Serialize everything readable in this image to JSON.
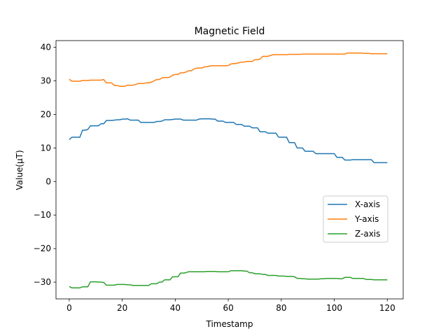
{
  "chart_data": {
    "type": "line",
    "title": "Magnetic Field",
    "xlabel": "Timestamp",
    "ylabel": "Value(μT)",
    "xlim": [
      -5,
      126
    ],
    "ylim": [
      -35,
      42
    ],
    "xticks": [
      0,
      20,
      40,
      60,
      80,
      100,
      120
    ],
    "yticks": [
      -30,
      -20,
      -10,
      0,
      10,
      20,
      30,
      40
    ],
    "legend": "center-right",
    "grid": false,
    "series": [
      {
        "name": "X-axis",
        "color": "#1f77b4",
        "x": [
          0,
          1,
          2,
          3,
          4,
          5,
          6,
          7,
          8,
          9,
          10,
          11,
          12,
          13,
          14,
          15,
          16,
          17,
          18,
          19,
          20,
          21,
          22,
          23,
          24,
          25,
          26,
          27,
          28,
          29,
          30,
          31,
          32,
          33,
          34,
          35,
          36,
          37,
          38,
          39,
          40,
          41,
          42,
          43,
          44,
          45,
          46,
          47,
          48,
          49,
          50,
          51,
          52,
          53,
          54,
          55,
          56,
          57,
          58,
          59,
          60,
          61,
          62,
          63,
          64,
          65,
          66,
          67,
          68,
          69,
          70,
          71,
          72,
          73,
          74,
          75,
          76,
          77,
          78,
          79,
          80,
          81,
          82,
          83,
          84,
          85,
          86,
          87,
          88,
          89,
          90,
          91,
          92,
          93,
          94,
          95,
          96,
          97,
          98,
          99,
          100,
          101,
          102,
          103,
          104,
          105,
          106,
          107,
          108,
          109,
          110,
          111,
          112,
          113,
          114,
          115,
          116,
          117,
          118,
          119,
          120
        ],
        "y": [
          12.5,
          13.2,
          13.2,
          13.2,
          13.2,
          15.3,
          15.3,
          15.5,
          16.6,
          16.6,
          16.6,
          16.6,
          17.2,
          17.2,
          18.2,
          18.2,
          18.2,
          18.3,
          18.4,
          18.4,
          18.6,
          18.6,
          18.7,
          18.3,
          18.3,
          18.3,
          18.3,
          17.6,
          17.6,
          17.6,
          17.6,
          17.6,
          17.6,
          17.9,
          17.9,
          18.0,
          18.4,
          18.4,
          18.4,
          18.5,
          18.6,
          18.6,
          18.6,
          18.3,
          18.3,
          18.3,
          18.3,
          18.3,
          18.3,
          18.6,
          18.7,
          18.7,
          18.7,
          18.7,
          18.6,
          18.6,
          18.0,
          18.0,
          18.0,
          17.6,
          17.6,
          17.6,
          17.6,
          17.0,
          17.0,
          17.0,
          16.5,
          16.5,
          16.5,
          16.0,
          16.0,
          16.0,
          14.8,
          14.8,
          14.8,
          14.4,
          14.4,
          14.4,
          14.4,
          13.2,
          13.2,
          13.2,
          13.2,
          11.6,
          11.6,
          11.6,
          10.0,
          10.0,
          10.0,
          9.0,
          9.0,
          9.0,
          9.0,
          8.3,
          8.3,
          8.3,
          8.3,
          8.3,
          8.3,
          8.3,
          8.3,
          7.2,
          7.2,
          7.2,
          6.4,
          6.4,
          6.4,
          6.5,
          6.5,
          6.5,
          6.5,
          6.5,
          6.5,
          6.5,
          6.5,
          5.6,
          5.6,
          5.6,
          5.6,
          5.6,
          5.6
        ],
        "series_break": true
      },
      {
        "name": "Y-axis",
        "color": "#ff7f0e",
        "x": [
          0,
          1,
          2,
          3,
          4,
          5,
          6,
          7,
          8,
          9,
          10,
          11,
          12,
          13,
          14,
          15,
          16,
          17,
          18,
          19,
          20,
          21,
          22,
          23,
          24,
          25,
          26,
          27,
          28,
          29,
          30,
          31,
          32,
          33,
          34,
          35,
          36,
          37,
          38,
          39,
          40,
          41,
          42,
          43,
          44,
          45,
          46,
          47,
          48,
          49,
          50,
          51,
          52,
          53,
          54,
          55,
          56,
          57,
          58,
          59,
          60,
          61,
          62,
          63,
          64,
          65,
          66,
          67,
          68,
          69,
          70,
          71,
          72,
          73,
          74,
          75,
          76,
          77,
          78,
          79,
          80,
          81,
          82,
          83,
          84,
          85,
          86,
          87,
          88,
          89,
          90,
          91,
          92,
          93,
          94,
          95,
          96,
          97,
          98,
          99,
          100,
          101,
          102,
          103,
          104,
          105,
          106,
          107,
          108,
          109,
          110,
          111,
          112,
          113,
          114,
          115,
          116,
          117,
          118,
          119,
          120
        ],
        "y": [
          30.5,
          29.9,
          29.9,
          29.9,
          29.9,
          30.1,
          30.1,
          30.1,
          30.2,
          30.2,
          30.2,
          30.2,
          30.2,
          30.4,
          29.4,
          29.4,
          29.4,
          28.6,
          28.6,
          28.4,
          28.4,
          28.4,
          28.7,
          28.7,
          28.7,
          28.9,
          29.2,
          29.2,
          29.2,
          29.4,
          29.4,
          29.6,
          30.0,
          30.4,
          30.4,
          30.9,
          31.0,
          31.0,
          31.1,
          31.7,
          31.9,
          31.9,
          32.4,
          32.4,
          32.6,
          33.0,
          33.0,
          33.5,
          33.8,
          33.8,
          33.8,
          34.2,
          34.2,
          34.4,
          34.5,
          34.5,
          34.5,
          34.5,
          34.5,
          34.5,
          34.6,
          35.0,
          35.2,
          35.2,
          35.4,
          35.6,
          35.6,
          35.8,
          35.8,
          35.8,
          36.3,
          36.3,
          36.5,
          37.3,
          37.3,
          37.3,
          37.6,
          37.8,
          37.8,
          37.8,
          37.8,
          37.8,
          37.8,
          37.9,
          37.9,
          37.9,
          37.9,
          37.9,
          38.0,
          38.0,
          38.0,
          38.0,
          38.0,
          38.0,
          38.0,
          38.0,
          38.0,
          38.0,
          38.0,
          38.0,
          38.0,
          38.0,
          38.0,
          38.0,
          38.0,
          38.3,
          38.3,
          38.3,
          38.3,
          38.3,
          38.3,
          38.2,
          38.2,
          38.2,
          38.1,
          38.1,
          38.1,
          38.1,
          38.1,
          38.1,
          38.1
        ]
      },
      {
        "name": "Z-axis",
        "color": "#2ca02c",
        "x": [
          0,
          1,
          2,
          3,
          4,
          5,
          6,
          7,
          8,
          9,
          10,
          11,
          12,
          13,
          14,
          15,
          16,
          17,
          18,
          19,
          20,
          21,
          22,
          23,
          24,
          25,
          26,
          27,
          28,
          29,
          30,
          31,
          32,
          33,
          34,
          35,
          36,
          37,
          38,
          39,
          40,
          41,
          42,
          43,
          44,
          45,
          46,
          47,
          48,
          49,
          50,
          51,
          52,
          53,
          54,
          55,
          56,
          57,
          58,
          59,
          60,
          61,
          62,
          63,
          64,
          65,
          66,
          67,
          68,
          69,
          70,
          71,
          72,
          73,
          74,
          75,
          76,
          77,
          78,
          79,
          80,
          81,
          82,
          83,
          84,
          85,
          86,
          87,
          88,
          89,
          90,
          91,
          92,
          93,
          94,
          95,
          96,
          97,
          98,
          99,
          100,
          101,
          102,
          103,
          104,
          105,
          106,
          107,
          108,
          109,
          110,
          111,
          112,
          113,
          114,
          115,
          116,
          117,
          118,
          119,
          120
        ],
        "y": [
          -31.3,
          -31.7,
          -31.7,
          -31.7,
          -31.7,
          -31.4,
          -31.4,
          -31.4,
          -29.9,
          -29.9,
          -29.9,
          -30.0,
          -30.0,
          -30.1,
          -30.9,
          -30.9,
          -30.9,
          -30.9,
          -30.7,
          -30.7,
          -30.7,
          -30.7,
          -30.8,
          -30.8,
          -31.0,
          -31.0,
          -31.0,
          -31.0,
          -31.0,
          -31.0,
          -31.0,
          -30.5,
          -30.5,
          -30.5,
          -30.0,
          -30.0,
          -29.3,
          -29.3,
          -29.3,
          -28.4,
          -28.4,
          -28.4,
          -27.3,
          -27.3,
          -27.2,
          -26.9,
          -26.9,
          -26.9,
          -26.9,
          -26.9,
          -26.9,
          -26.9,
          -26.8,
          -26.8,
          -26.8,
          -26.8,
          -26.9,
          -26.9,
          -26.9,
          -26.9,
          -26.9,
          -26.6,
          -26.6,
          -26.6,
          -26.6,
          -26.6,
          -26.7,
          -26.7,
          -27.2,
          -27.2,
          -27.5,
          -27.5,
          -27.5,
          -27.7,
          -27.7,
          -28.0,
          -28.0,
          -28.0,
          -28.0,
          -28.2,
          -28.2,
          -28.2,
          -28.3,
          -28.3,
          -28.3,
          -28.4,
          -28.9,
          -28.9,
          -29.0,
          -29.0,
          -29.1,
          -29.1,
          -29.1,
          -29.1,
          -29.1,
          -29.0,
          -29.0,
          -28.9,
          -28.9,
          -28.9,
          -28.9,
          -28.9,
          -29.0,
          -29.0,
          -28.6,
          -28.6,
          -28.6,
          -28.9,
          -28.9,
          -28.9,
          -28.9,
          -28.9,
          -29.2,
          -29.2,
          -29.2,
          -29.3,
          -29.3,
          -29.3,
          -29.3,
          -29.3,
          -29.3
        ]
      }
    ]
  }
}
